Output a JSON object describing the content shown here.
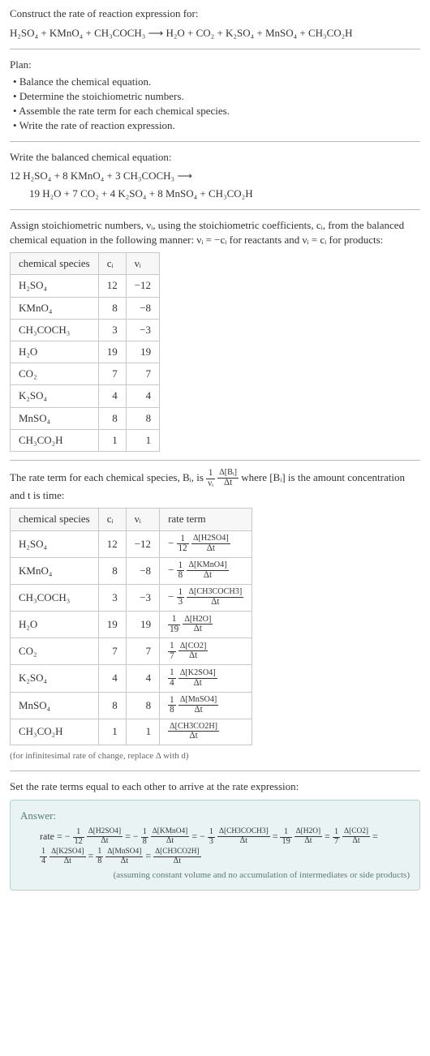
{
  "intro": "Construct the rate of reaction expression for:",
  "reaction_unbalanced": "H₂SO₄ + KMnO₄ + CH₃COCH₃ ⟶ H₂O + CO₂ + K₂SO₄ + MnSO₄ + CH₃CO₂H",
  "plan": {
    "title": "Plan:",
    "items": [
      "Balance the chemical equation.",
      "Determine the stoichiometric numbers.",
      "Assemble the rate term for each chemical species.",
      "Write the rate of reaction expression."
    ]
  },
  "balanced": {
    "heading": "Write the balanced chemical equation:",
    "line1": "12 H₂SO₄ + 8 KMnO₄ + 3 CH₃COCH₃ ⟶",
    "line2": "19 H₂O + 7 CO₂ + 4 K₂SO₄ + 8 MnSO₄ + CH₃CO₂H"
  },
  "stoich_intro": {
    "text": "Assign stoichiometric numbers, νᵢ, using the stoichiometric coefficients, cᵢ, from the balanced chemical equation in the following manner: νᵢ = −cᵢ for reactants and νᵢ = cᵢ for products:"
  },
  "table1": {
    "headers": [
      "chemical species",
      "cᵢ",
      "νᵢ"
    ],
    "rows": [
      {
        "sp": "H₂SO₄",
        "c": "12",
        "v": "−12"
      },
      {
        "sp": "KMnO₄",
        "c": "8",
        "v": "−8"
      },
      {
        "sp": "CH₃COCH₃",
        "c": "3",
        "v": "−3"
      },
      {
        "sp": "H₂O",
        "c": "19",
        "v": "19"
      },
      {
        "sp": "CO₂",
        "c": "7",
        "v": "7"
      },
      {
        "sp": "K₂SO₄",
        "c": "4",
        "v": "4"
      },
      {
        "sp": "MnSO₄",
        "c": "8",
        "v": "8"
      },
      {
        "sp": "CH₃CO₂H",
        "c": "1",
        "v": "1"
      }
    ]
  },
  "rate_intro": {
    "pre": "The rate term for each chemical species, Bᵢ, is ",
    "post": " where [Bᵢ] is the amount concentration and t is time:"
  },
  "rate_frac": {
    "coef_n": "1",
    "coef_d": "νᵢ",
    "num": "Δ[Bᵢ]",
    "den": "Δt"
  },
  "table2": {
    "headers": [
      "chemical species",
      "cᵢ",
      "νᵢ",
      "rate term"
    ],
    "rows": [
      {
        "sp": "H₂SO₄",
        "c": "12",
        "v": "−12",
        "sign": "−",
        "coef_n": "1",
        "coef_d": "12",
        "num": "Δ[H2SO4]",
        "den": "Δt"
      },
      {
        "sp": "KMnO₄",
        "c": "8",
        "v": "−8",
        "sign": "−",
        "coef_n": "1",
        "coef_d": "8",
        "num": "Δ[KMnO4]",
        "den": "Δt"
      },
      {
        "sp": "CH₃COCH₃",
        "c": "3",
        "v": "−3",
        "sign": "−",
        "coef_n": "1",
        "coef_d": "3",
        "num": "Δ[CH3COCH3]",
        "den": "Δt"
      },
      {
        "sp": "H₂O",
        "c": "19",
        "v": "19",
        "sign": "",
        "coef_n": "1",
        "coef_d": "19",
        "num": "Δ[H2O]",
        "den": "Δt"
      },
      {
        "sp": "CO₂",
        "c": "7",
        "v": "7",
        "sign": "",
        "coef_n": "1",
        "coef_d": "7",
        "num": "Δ[CO2]",
        "den": "Δt"
      },
      {
        "sp": "K₂SO₄",
        "c": "4",
        "v": "4",
        "sign": "",
        "coef_n": "1",
        "coef_d": "4",
        "num": "Δ[K2SO4]",
        "den": "Δt"
      },
      {
        "sp": "MnSO₄",
        "c": "8",
        "v": "8",
        "sign": "",
        "coef_n": "1",
        "coef_d": "8",
        "num": "Δ[MnSO4]",
        "den": "Δt"
      },
      {
        "sp": "CH₃CO₂H",
        "c": "1",
        "v": "1",
        "sign": "",
        "coef_n": "",
        "coef_d": "",
        "num": "Δ[CH3CO2H]",
        "den": "Δt"
      }
    ]
  },
  "infinitesimal_note": "(for infinitesimal rate of change, replace Δ with d)",
  "set_equal": "Set the rate terms equal to each other to arrive at the rate expression:",
  "answer": {
    "title": "Answer:",
    "lead": "rate = ",
    "terms": [
      {
        "sign": "−",
        "coef_n": "1",
        "coef_d": "12",
        "num": "Δ[H2SO4]",
        "den": "Δt"
      },
      {
        "sign": "−",
        "coef_n": "1",
        "coef_d": "8",
        "num": "Δ[KMnO4]",
        "den": "Δt"
      },
      {
        "sign": "−",
        "coef_n": "1",
        "coef_d": "3",
        "num": "Δ[CH3COCH3]",
        "den": "Δt"
      },
      {
        "sign": "",
        "coef_n": "1",
        "coef_d": "19",
        "num": "Δ[H2O]",
        "den": "Δt"
      },
      {
        "sign": "",
        "coef_n": "1",
        "coef_d": "7",
        "num": "Δ[CO2]",
        "den": "Δt"
      },
      {
        "sign": "",
        "coef_n": "1",
        "coef_d": "4",
        "num": "Δ[K2SO4]",
        "den": "Δt"
      },
      {
        "sign": "",
        "coef_n": "1",
        "coef_d": "8",
        "num": "Δ[MnSO4]",
        "den": "Δt"
      },
      {
        "sign": "",
        "coef_n": "",
        "coef_d": "",
        "num": "Δ[CH3CO2H]",
        "den": "Δt"
      }
    ],
    "note": "(assuming constant volume and no accumulation of intermediates or side products)"
  },
  "colors": {
    "border": "#c8c8c8",
    "answer_bg": "#eaf3f3",
    "answer_border": "#b8d0d0",
    "text": "#333333"
  }
}
